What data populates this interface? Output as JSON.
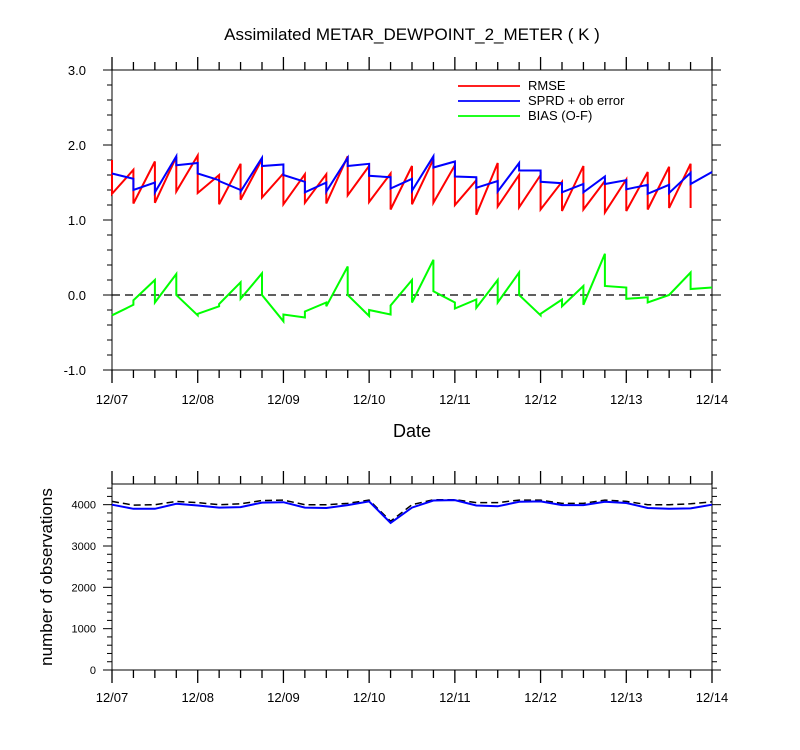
{
  "chart_data": [
    {
      "type": "line",
      "title": "Assimilated METAR_DEWPOINT_2_METER ( K )",
      "xlabel": "Date",
      "ylabel": "",
      "xlim": [
        0,
        7
      ],
      "ylim": [
        -1.0,
        3.0
      ],
      "x_tick_labels": [
        "12/07",
        "12/08",
        "12/09",
        "12/10",
        "12/11",
        "12/12",
        "12/13",
        "12/14"
      ],
      "y_tick_labels": [
        "3.0",
        "2.0",
        "1.0",
        "0.0",
        "-1.0"
      ],
      "y_ticks": [
        3.0,
        2.0,
        1.0,
        0.0,
        -1.0
      ],
      "grid": false,
      "zero_line": "dashed",
      "legend_position": "top-right",
      "series": [
        {
          "name": "RMSE",
          "color": "#ff0000",
          "points": [
            [
              0,
              1.8
            ],
            [
              0,
              1.35
            ],
            [
              0.25,
              1.67
            ],
            [
              0.25,
              1.22
            ],
            [
              0.5,
              1.78
            ],
            [
              0.5,
              1.23
            ],
            [
              0.75,
              1.84
            ],
            [
              0.75,
              1.38
            ],
            [
              1.0,
              1.86
            ],
            [
              1.0,
              1.36
            ],
            [
              1.25,
              1.6
            ],
            [
              1.25,
              1.21
            ],
            [
              1.5,
              1.75
            ],
            [
              1.5,
              1.27
            ],
            [
              1.75,
              1.81
            ],
            [
              1.75,
              1.3
            ],
            [
              2.0,
              1.62
            ],
            [
              2.0,
              1.21
            ],
            [
              2.25,
              1.61
            ],
            [
              2.25,
              1.23
            ],
            [
              2.5,
              1.61
            ],
            [
              2.5,
              1.22
            ],
            [
              2.75,
              1.85
            ],
            [
              2.75,
              1.33
            ],
            [
              3.0,
              1.72
            ],
            [
              3.0,
              1.24
            ],
            [
              3.25,
              1.62
            ],
            [
              3.25,
              1.14
            ],
            [
              3.5,
              1.72
            ],
            [
              3.5,
              1.21
            ],
            [
              3.75,
              1.81
            ],
            [
              3.75,
              1.23
            ],
            [
              4.0,
              1.73
            ],
            [
              4.0,
              1.2
            ],
            [
              4.25,
              1.53
            ],
            [
              4.25,
              1.07
            ],
            [
              4.5,
              1.76
            ],
            [
              4.5,
              1.18
            ],
            [
              4.75,
              1.6
            ],
            [
              4.75,
              1.17
            ],
            [
              5.0,
              1.6
            ],
            [
              5.0,
              1.14
            ],
            [
              5.25,
              1.51
            ],
            [
              5.25,
              1.12
            ],
            [
              5.5,
              1.72
            ],
            [
              5.5,
              1.14
            ],
            [
              5.75,
              1.52
            ],
            [
              5.75,
              1.1
            ],
            [
              6.0,
              1.54
            ],
            [
              6.0,
              1.12
            ],
            [
              6.25,
              1.64
            ],
            [
              6.25,
              1.14
            ],
            [
              6.5,
              1.71
            ],
            [
              6.5,
              1.16
            ],
            [
              6.75,
              1.75
            ],
            [
              6.75,
              1.16
            ]
          ]
        },
        {
          "name": "SPRD + ob error",
          "color": "#0000ff",
          "points": [
            [
              0,
              1.62
            ],
            [
              0.25,
              1.55
            ],
            [
              0.25,
              1.4
            ],
            [
              0.5,
              1.5
            ],
            [
              0.5,
              1.37
            ],
            [
              0.75,
              1.85
            ],
            [
              0.75,
              1.73
            ],
            [
              1.0,
              1.76
            ],
            [
              1.0,
              1.62
            ],
            [
              1.25,
              1.53
            ],
            [
              1.25,
              1.52
            ],
            [
              1.5,
              1.4
            ],
            [
              1.5,
              1.38
            ],
            [
              1.75,
              1.83
            ],
            [
              1.75,
              1.72
            ],
            [
              2.0,
              1.74
            ],
            [
              2.0,
              1.6
            ],
            [
              2.25,
              1.51
            ],
            [
              2.25,
              1.37
            ],
            [
              2.5,
              1.5
            ],
            [
              2.5,
              1.38
            ],
            [
              2.75,
              1.83
            ],
            [
              2.75,
              1.72
            ],
            [
              3.0,
              1.75
            ],
            [
              3.0,
              1.59
            ],
            [
              3.25,
              1.57
            ],
            [
              3.25,
              1.42
            ],
            [
              3.5,
              1.55
            ],
            [
              3.5,
              1.39
            ],
            [
              3.75,
              1.85
            ],
            [
              3.75,
              1.7
            ],
            [
              4.0,
              1.78
            ],
            [
              4.0,
              1.58
            ],
            [
              4.25,
              1.57
            ],
            [
              4.25,
              1.43
            ],
            [
              4.5,
              1.52
            ],
            [
              4.5,
              1.38
            ],
            [
              4.75,
              1.76
            ],
            [
              4.75,
              1.66
            ],
            [
              5.0,
              1.66
            ],
            [
              5.0,
              1.51
            ],
            [
              5.25,
              1.49
            ],
            [
              5.25,
              1.37
            ],
            [
              5.5,
              1.48
            ],
            [
              5.5,
              1.37
            ],
            [
              5.75,
              1.58
            ],
            [
              5.75,
              1.48
            ],
            [
              6.0,
              1.53
            ],
            [
              6.0,
              1.41
            ],
            [
              6.25,
              1.47
            ],
            [
              6.25,
              1.35
            ],
            [
              6.5,
              1.47
            ],
            [
              6.5,
              1.36
            ],
            [
              6.75,
              1.63
            ],
            [
              6.75,
              1.48
            ],
            [
              7.0,
              1.64
            ]
          ]
        },
        {
          "name": "BIAS (O-F)",
          "color": "#00ff00",
          "points": [
            [
              0,
              -0.27
            ],
            [
              0.25,
              -0.13
            ],
            [
              0.25,
              -0.07
            ],
            [
              0.5,
              0.2
            ],
            [
              0.5,
              -0.1
            ],
            [
              0.75,
              0.28
            ],
            [
              0.75,
              0.0
            ],
            [
              1.0,
              -0.27
            ],
            [
              1.0,
              -0.25
            ],
            [
              1.25,
              -0.15
            ],
            [
              1.25,
              -0.12
            ],
            [
              1.5,
              0.17
            ],
            [
              1.5,
              -0.05
            ],
            [
              1.75,
              0.29
            ],
            [
              1.75,
              0.0
            ],
            [
              2.0,
              -0.35
            ],
            [
              2.0,
              -0.26
            ],
            [
              2.25,
              -0.3
            ],
            [
              2.25,
              -0.22
            ],
            [
              2.5,
              -0.1
            ],
            [
              2.5,
              -0.15
            ],
            [
              2.75,
              0.38
            ],
            [
              2.75,
              0.0
            ],
            [
              3.0,
              -0.28
            ],
            [
              3.0,
              -0.2
            ],
            [
              3.25,
              -0.26
            ],
            [
              3.25,
              -0.14
            ],
            [
              3.5,
              0.2
            ],
            [
              3.5,
              -0.1
            ],
            [
              3.75,
              0.47
            ],
            [
              3.75,
              0.05
            ],
            [
              4.0,
              -0.1
            ],
            [
              4.0,
              -0.18
            ],
            [
              4.25,
              -0.06
            ],
            [
              4.25,
              -0.17
            ],
            [
              4.5,
              0.2
            ],
            [
              4.5,
              -0.1
            ],
            [
              4.75,
              0.3
            ],
            [
              4.75,
              0.0
            ],
            [
              5.0,
              -0.27
            ],
            [
              5.0,
              -0.25
            ],
            [
              5.25,
              -0.06
            ],
            [
              5.25,
              -0.15
            ],
            [
              5.5,
              0.12
            ],
            [
              5.5,
              -0.13
            ],
            [
              5.75,
              0.55
            ],
            [
              5.75,
              0.12
            ],
            [
              6.0,
              0.1
            ],
            [
              6.0,
              -0.05
            ],
            [
              6.25,
              -0.03
            ],
            [
              6.25,
              -0.1
            ],
            [
              6.5,
              0.0
            ],
            [
              6.5,
              0.0
            ],
            [
              6.75,
              0.3
            ],
            [
              6.75,
              0.08
            ],
            [
              7.0,
              0.1
            ]
          ]
        }
      ]
    },
    {
      "type": "line",
      "title": "",
      "xlabel": "",
      "ylabel": "number of observations",
      "xlim": [
        0,
        7
      ],
      "ylim": [
        0,
        4500
      ],
      "x_tick_labels": [
        "12/07",
        "12/08",
        "12/09",
        "12/10",
        "12/11",
        "12/12",
        "12/13",
        "12/14"
      ],
      "y_tick_labels": [
        "4000",
        "3000",
        "2000",
        "1000",
        "0"
      ],
      "y_ticks": [
        4000,
        3000,
        2000,
        1000,
        0
      ],
      "grid": false,
      "series": [
        {
          "color": "#000000",
          "style": "dashed",
          "points": [
            [
              0,
              4080
            ],
            [
              0.25,
              3990
            ],
            [
              0.5,
              4000
            ],
            [
              0.75,
              4080
            ],
            [
              1.0,
              4050
            ],
            [
              1.25,
              4000
            ],
            [
              1.5,
              4020
            ],
            [
              1.75,
              4100
            ],
            [
              2.0,
              4110
            ],
            [
              2.25,
              4000
            ],
            [
              2.5,
              4000
            ],
            [
              2.75,
              4030
            ],
            [
              3.0,
              4110
            ],
            [
              3.25,
              3600
            ],
            [
              3.5,
              4000
            ],
            [
              3.75,
              4120
            ],
            [
              4.0,
              4120
            ],
            [
              4.25,
              4050
            ],
            [
              4.5,
              4050
            ],
            [
              4.75,
              4110
            ],
            [
              5.0,
              4110
            ],
            [
              5.25,
              4030
            ],
            [
              5.5,
              4030
            ],
            [
              5.75,
              4110
            ],
            [
              6.0,
              4080
            ],
            [
              6.25,
              4000
            ],
            [
              6.5,
              4000
            ],
            [
              6.75,
              4020
            ],
            [
              7.0,
              4070
            ]
          ]
        },
        {
          "color": "#0000ff",
          "style": "solid",
          "points": [
            [
              0,
              4000
            ],
            [
              0.25,
              3900
            ],
            [
              0.5,
              3900
            ],
            [
              0.75,
              4020
            ],
            [
              1.0,
              3980
            ],
            [
              1.25,
              3930
            ],
            [
              1.5,
              3940
            ],
            [
              1.75,
              4050
            ],
            [
              2.0,
              4060
            ],
            [
              2.25,
              3930
            ],
            [
              2.5,
              3920
            ],
            [
              2.75,
              3990
            ],
            [
              3.0,
              4080
            ],
            [
              3.25,
              3560
            ],
            [
              3.5,
              3930
            ],
            [
              3.75,
              4100
            ],
            [
              4.0,
              4110
            ],
            [
              4.25,
              3980
            ],
            [
              4.5,
              3960
            ],
            [
              4.75,
              4070
            ],
            [
              5.0,
              4080
            ],
            [
              5.25,
              3990
            ],
            [
              5.5,
              3990
            ],
            [
              5.75,
              4070
            ],
            [
              6.0,
              4040
            ],
            [
              6.25,
              3920
            ],
            [
              6.5,
              3900
            ],
            [
              6.75,
              3910
            ],
            [
              7.0,
              4000
            ]
          ]
        }
      ]
    }
  ]
}
